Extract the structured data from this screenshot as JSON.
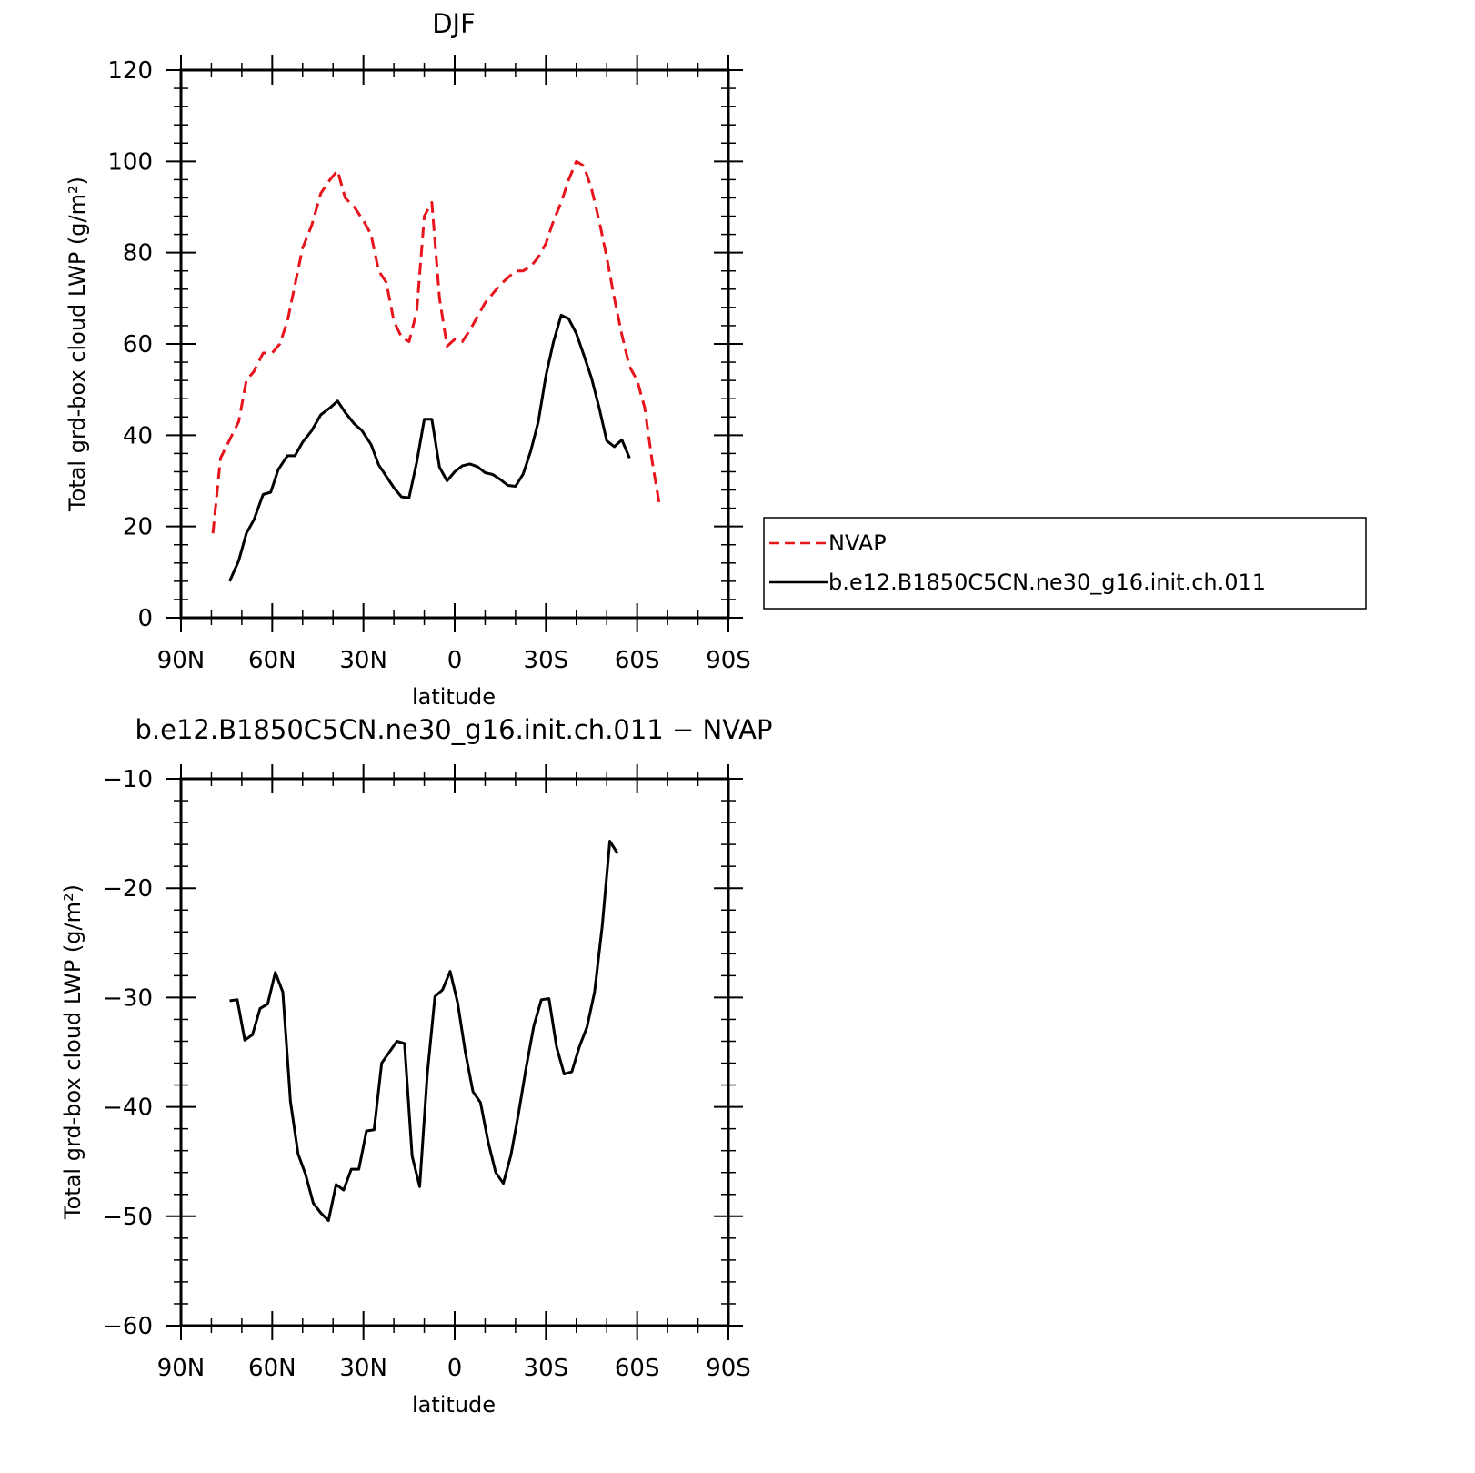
{
  "chart_data": [
    {
      "type": "line",
      "title": "DJF",
      "xlabel": "latitude",
      "ylabel": "Total grd-box cloud LWP (g/m²)",
      "xlim": [
        90,
        -90
      ],
      "ylim": [
        0,
        120
      ],
      "x_ticks": [
        90,
        60,
        30,
        0,
        -30,
        -60,
        -90
      ],
      "x_tick_labels": [
        "90N",
        "60N",
        "30N",
        "0",
        "30S",
        "60S",
        "90S"
      ],
      "y_ticks": [
        0,
        20,
        40,
        60,
        80,
        100,
        120
      ],
      "y_tick_labels": [
        "0",
        "20",
        "40",
        "60",
        "80",
        "100",
        "120"
      ],
      "legend_position": "right",
      "series": [
        {
          "name": "NVAP",
          "color": "#e8141c",
          "style": "dashed",
          "points": [
            [
              79.5,
              18.5
            ],
            [
              77,
              35
            ],
            [
              74,
              39
            ],
            [
              71,
              43
            ],
            [
              68.5,
              52
            ],
            [
              66,
              54
            ],
            [
              63,
              58
            ],
            [
              60,
              58
            ],
            [
              57.5,
              60
            ],
            [
              55,
              65
            ],
            [
              52.5,
              73
            ],
            [
              50,
              81
            ],
            [
              47,
              86
            ],
            [
              44,
              93
            ],
            [
              41,
              96
            ],
            [
              38.5,
              98
            ],
            [
              36,
              92
            ],
            [
              33,
              90
            ],
            [
              30,
              87
            ],
            [
              27.5,
              84
            ],
            [
              25,
              76
            ],
            [
              22.5,
              73.5
            ],
            [
              20,
              65
            ],
            [
              17.5,
              61.5
            ],
            [
              15,
              60.5
            ],
            [
              12.5,
              67
            ],
            [
              10,
              88
            ],
            [
              7.5,
              91
            ],
            [
              5,
              70
            ],
            [
              2.5,
              59.5
            ],
            [
              0,
              61
            ],
            [
              -2.5,
              60.5
            ],
            [
              -5,
              63
            ],
            [
              -7.5,
              66
            ],
            [
              -10,
              69
            ],
            [
              -12.5,
              71
            ],
            [
              -15,
              73
            ],
            [
              -17.5,
              74.5
            ],
            [
              -20,
              76
            ],
            [
              -22.5,
              76
            ],
            [
              -25,
              77
            ],
            [
              -27.5,
              79
            ],
            [
              -30,
              82
            ],
            [
              -32.5,
              87
            ],
            [
              -35,
              91
            ],
            [
              -37.5,
              96
            ],
            [
              -40,
              100
            ],
            [
              -42.5,
              99
            ],
            [
              -45,
              94
            ],
            [
              -47.5,
              87
            ],
            [
              -50,
              79
            ],
            [
              -52.5,
              70
            ],
            [
              -55,
              62
            ],
            [
              -57.5,
              55
            ],
            [
              -60,
              52
            ],
            [
              -62.5,
              46
            ],
            [
              -65,
              34
            ],
            [
              -67.5,
              24
            ]
          ]
        },
        {
          "name": "b.e12.B1850C5CN.ne30_g16.init.ch.011",
          "color": "#000000",
          "style": "solid",
          "points": [
            [
              74,
              8
            ],
            [
              71,
              12.5
            ],
            [
              68.5,
              18.5
            ],
            [
              66,
              21.5
            ],
            [
              63,
              27
            ],
            [
              60.5,
              27.5
            ],
            [
              58,
              32.5
            ],
            [
              55,
              35.5
            ],
            [
              52.5,
              35.5
            ],
            [
              50,
              38.5
            ],
            [
              47,
              41
            ],
            [
              44,
              44.5
            ],
            [
              41,
              46
            ],
            [
              38.5,
              47.5
            ],
            [
              36,
              45
            ],
            [
              33,
              42.5
            ],
            [
              30.5,
              41
            ],
            [
              27.5,
              38
            ],
            [
              25,
              33.5
            ],
            [
              22.5,
              31
            ],
            [
              20,
              28.5
            ],
            [
              17.5,
              26.5
            ],
            [
              15,
              26.3
            ],
            [
              12.5,
              34
            ],
            [
              10,
              43.5
            ],
            [
              7.5,
              43.5
            ],
            [
              5,
              33
            ],
            [
              2.5,
              30
            ],
            [
              0,
              32
            ],
            [
              -2.5,
              33.3
            ],
            [
              -5,
              33.7
            ],
            [
              -7.5,
              33.1
            ],
            [
              -10,
              31.8
            ],
            [
              -12.5,
              31.4
            ],
            [
              -15,
              30.3
            ],
            [
              -17.5,
              29
            ],
            [
              -20,
              28.8
            ],
            [
              -22.5,
              31.5
            ],
            [
              -25,
              36.5
            ],
            [
              -27.5,
              43
            ],
            [
              -30,
              53
            ],
            [
              -32.5,
              60.5
            ],
            [
              -35,
              66.3
            ],
            [
              -37.5,
              65.5
            ],
            [
              -40,
              62.3
            ],
            [
              -42.5,
              57.5
            ],
            [
              -45,
              52.5
            ],
            [
              -47.5,
              46
            ],
            [
              -50,
              38.8
            ],
            [
              -52.5,
              37.5
            ],
            [
              -55,
              39
            ],
            [
              -57.5,
              35
            ]
          ]
        }
      ]
    },
    {
      "type": "line",
      "title": "b.e12.B1850C5CN.ne30_g16.init.ch.011 − NVAP",
      "xlabel": "latitude",
      "ylabel": "Total grd-box cloud LWP (g/m²)",
      "xlim": [
        90,
        -90
      ],
      "ylim": [
        -60,
        -10
      ],
      "x_ticks": [
        90,
        60,
        30,
        0,
        -30,
        -60,
        -90
      ],
      "x_tick_labels": [
        "90N",
        "60N",
        "30N",
        "0",
        "30S",
        "60S",
        "90S"
      ],
      "y_ticks": [
        -60,
        -50,
        -40,
        -30,
        -20,
        -10
      ],
      "y_tick_labels": [
        "−60",
        "−50",
        "−40",
        "−30",
        "−20",
        "−10"
      ],
      "series": [
        {
          "color": "#000000",
          "style": "solid",
          "points": [
            [
              74,
              -30.3
            ],
            [
              71.5,
              -30.2
            ],
            [
              69,
              -33.9
            ],
            [
              66.5,
              -33.4
            ],
            [
              64,
              -31
            ],
            [
              61.5,
              -30.6
            ],
            [
              59,
              -27.7
            ],
            [
              56.5,
              -29.5
            ],
            [
              54,
              -39.5
            ],
            [
              51.5,
              -44.3
            ],
            [
              49,
              -46.2
            ],
            [
              46.5,
              -48.8
            ],
            [
              44,
              -49.7
            ],
            [
              41.5,
              -50.4
            ],
            [
              39,
              -47.1
            ],
            [
              36.5,
              -47.6
            ],
            [
              34,
              -45.7
            ],
            [
              31.5,
              -45.7
            ],
            [
              29,
              -42.2
            ],
            [
              26.5,
              -42.1
            ],
            [
              24,
              -36
            ],
            [
              21.5,
              -35
            ],
            [
              19,
              -34
            ],
            [
              16.5,
              -34.2
            ],
            [
              14,
              -44.5
            ],
            [
              11.5,
              -47.3
            ],
            [
              9,
              -37
            ],
            [
              6.5,
              -29.9
            ],
            [
              4,
              -29.3
            ],
            [
              1.5,
              -27.6
            ],
            [
              -1,
              -30.5
            ],
            [
              -3.5,
              -35
            ],
            [
              -6,
              -38.6
            ],
            [
              -8.5,
              -39.6
            ],
            [
              -11,
              -43.2
            ],
            [
              -13.5,
              -46
            ],
            [
              -16,
              -47
            ],
            [
              -18.5,
              -44.4
            ],
            [
              -21,
              -40.6
            ],
            [
              -23.5,
              -36.4
            ],
            [
              -26,
              -32.6
            ],
            [
              -28.5,
              -30.2
            ],
            [
              -31,
              -30.1
            ],
            [
              -33.5,
              -34.5
            ],
            [
              -36,
              -37
            ],
            [
              -38.5,
              -36.8
            ],
            [
              -41,
              -34.5
            ],
            [
              -43.5,
              -32.7
            ],
            [
              -46,
              -29.5
            ],
            [
              -48.5,
              -23.5
            ],
            [
              -51,
              -15.7
            ],
            [
              -53.5,
              -16.8
            ]
          ]
        }
      ]
    }
  ]
}
